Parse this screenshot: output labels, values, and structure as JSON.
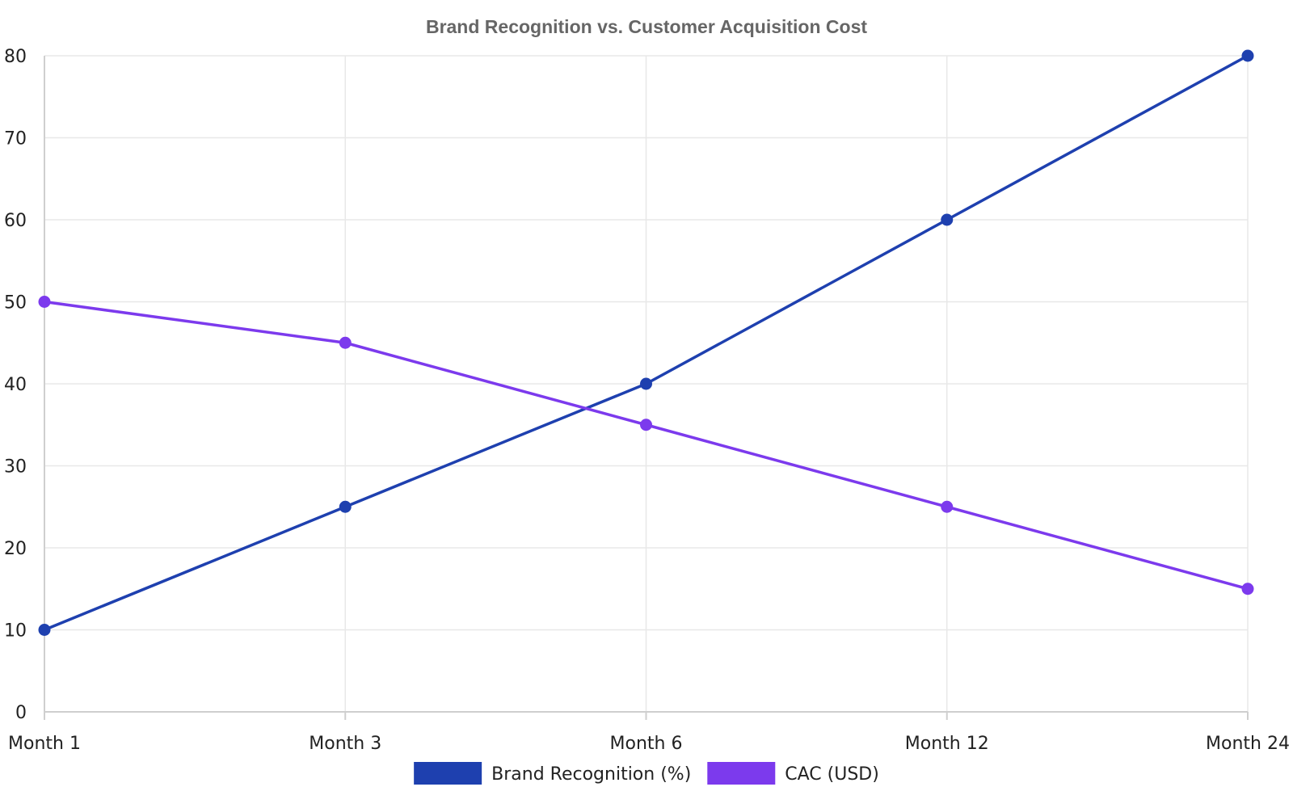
{
  "chart_data": {
    "type": "line",
    "title": "Brand Recognition vs. Customer Acquisition Cost",
    "xlabel": "",
    "ylabel": "",
    "categories": [
      "Month 1",
      "Month 3",
      "Month 6",
      "Month 12",
      "Month 24"
    ],
    "ylim": [
      0,
      80
    ],
    "yticks": [
      0,
      10,
      20,
      30,
      40,
      50,
      60,
      70,
      80
    ],
    "grid": true,
    "legend_position": "bottom",
    "series": [
      {
        "name": "Brand Recognition (%)",
        "color": "#1e40af",
        "values": [
          10,
          25,
          40,
          60,
          80
        ]
      },
      {
        "name": "CAC (USD)",
        "color": "#7c3aed",
        "values": [
          50,
          45,
          35,
          25,
          15
        ]
      }
    ]
  }
}
